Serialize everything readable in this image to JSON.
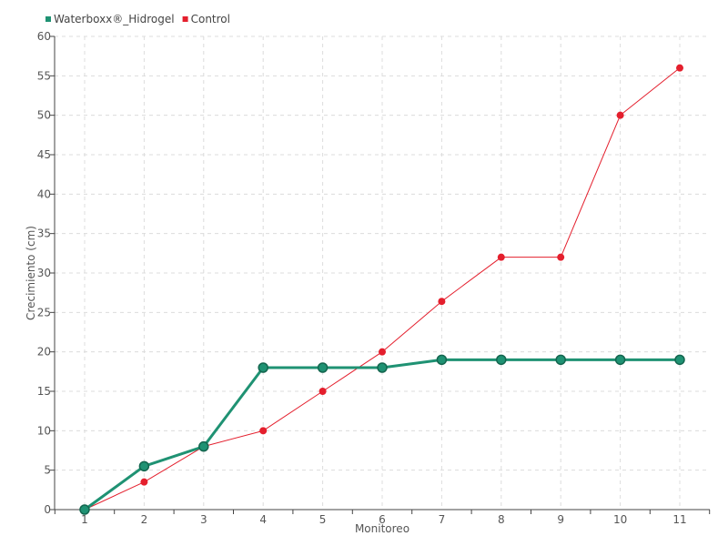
{
  "chart_data": {
    "type": "line",
    "categories": [
      "1",
      "2",
      "3",
      "4",
      "5",
      "6",
      "7",
      "8",
      "9",
      "10",
      "11"
    ],
    "xlabel": "Monitoreo",
    "ylabel": "Crecimiento (cm)",
    "ylim": [
      0,
      60
    ],
    "yticks": [
      "0",
      "5",
      "10",
      "15",
      "20",
      "25",
      "30",
      "35",
      "40",
      "45",
      "50",
      "55",
      "60"
    ],
    "grid": true,
    "legend_placement": "top-left",
    "series": [
      {
        "name": "Waterboxx®_Hidrogel",
        "color": "#1f9273",
        "values": [
          0,
          5.5,
          8,
          18,
          18,
          18,
          19,
          19,
          19,
          19,
          19
        ]
      },
      {
        "name": "Control",
        "color": "#e41f2d",
        "values": [
          0,
          3.5,
          8,
          10,
          15,
          20,
          26.4,
          32,
          32,
          50,
          56
        ]
      }
    ]
  }
}
